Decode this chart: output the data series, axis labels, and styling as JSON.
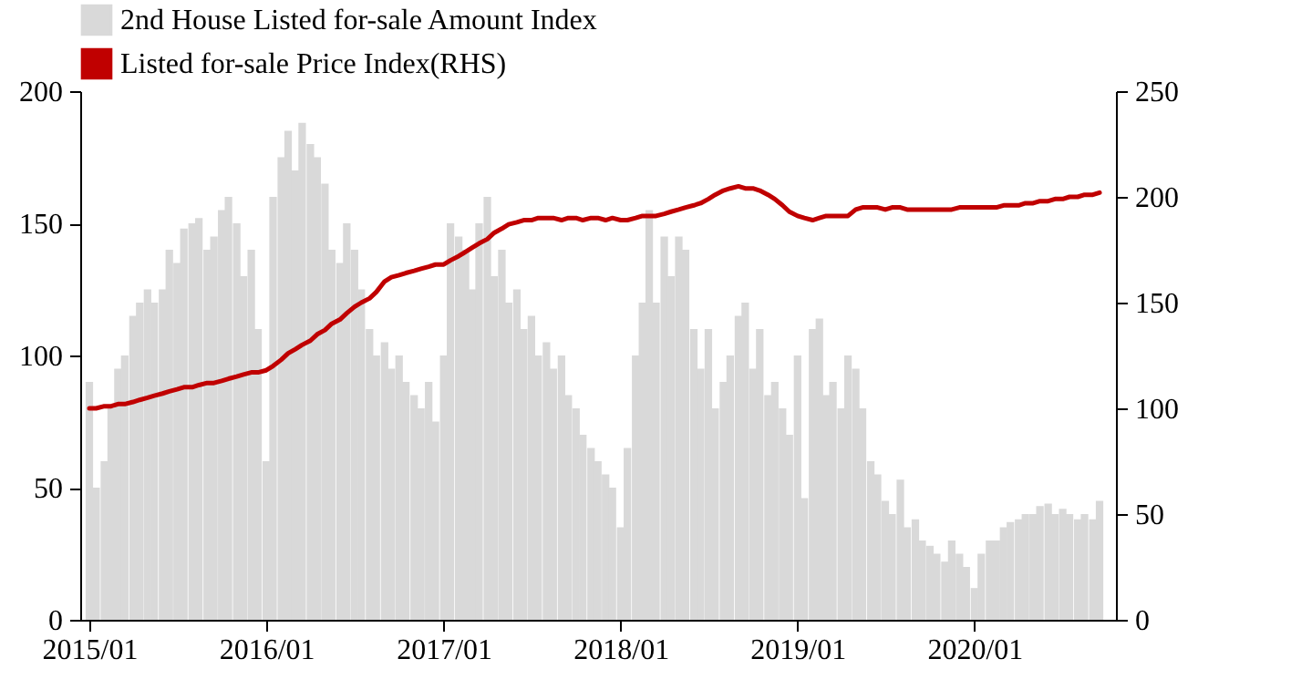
{
  "chart_data": {
    "type": "bar",
    "x": [
      "2015-01-01",
      "2015-01-15",
      "2015-02-01",
      "2015-02-15",
      "2015-03-01",
      "2015-03-15",
      "2015-04-01",
      "2015-04-15",
      "2015-05-01",
      "2015-05-15",
      "2015-06-01",
      "2015-06-15",
      "2015-07-01",
      "2015-07-15",
      "2015-08-01",
      "2015-08-15",
      "2015-09-01",
      "2015-09-15",
      "2015-10-01",
      "2015-10-15",
      "2015-11-01",
      "2015-11-15",
      "2015-12-01",
      "2015-12-15",
      "2016-01-01",
      "2016-01-15",
      "2016-02-01",
      "2016-02-15",
      "2016-03-01",
      "2016-03-15",
      "2016-04-01",
      "2016-04-15",
      "2016-05-01",
      "2016-05-15",
      "2016-06-01",
      "2016-06-15",
      "2016-07-01",
      "2016-07-15",
      "2016-08-01",
      "2016-08-15",
      "2016-09-01",
      "2016-09-15",
      "2016-10-01",
      "2016-10-15",
      "2016-11-01",
      "2016-11-15",
      "2016-12-01",
      "2016-12-15",
      "2017-01-01",
      "2017-01-15",
      "2017-02-01",
      "2017-02-15",
      "2017-03-01",
      "2017-03-15",
      "2017-04-01",
      "2017-04-15",
      "2017-05-01",
      "2017-05-15",
      "2017-06-01",
      "2017-06-15",
      "2017-07-01",
      "2017-07-15",
      "2017-08-01",
      "2017-08-15",
      "2017-09-01",
      "2017-09-15",
      "2017-10-01",
      "2017-10-15",
      "2017-11-01",
      "2017-11-15",
      "2017-12-01",
      "2017-12-15",
      "2018-01-01",
      "2018-01-15",
      "2018-02-01",
      "2018-02-15",
      "2018-03-01",
      "2018-03-15",
      "2018-04-01",
      "2018-04-15",
      "2018-05-01",
      "2018-05-15",
      "2018-06-01",
      "2018-06-15",
      "2018-07-01",
      "2018-07-15",
      "2018-08-01",
      "2018-08-15",
      "2018-09-01",
      "2018-09-15",
      "2018-10-01",
      "2018-10-15",
      "2018-11-01",
      "2018-11-15",
      "2018-12-01",
      "2018-12-15",
      "2019-01-01",
      "2019-01-15",
      "2019-02-01",
      "2019-02-15",
      "2019-03-01",
      "2019-03-15",
      "2019-04-01",
      "2019-04-15",
      "2019-05-01",
      "2019-05-15",
      "2019-06-01",
      "2019-06-15",
      "2019-07-01",
      "2019-07-15",
      "2019-08-01",
      "2019-08-15",
      "2019-09-01",
      "2019-09-15",
      "2019-10-01",
      "2019-10-15",
      "2019-11-01",
      "2019-11-15",
      "2019-12-01",
      "2019-12-15",
      "2020-01-01",
      "2020-01-15",
      "2020-02-01",
      "2020-02-15",
      "2020-03-01",
      "2020-03-15",
      "2020-04-01",
      "2020-04-15",
      "2020-05-01",
      "2020-05-15",
      "2020-06-01",
      "2020-06-15",
      "2020-07-01",
      "2020-07-15",
      "2020-08-01",
      "2020-08-15",
      "2020-09-01",
      "2020-09-15"
    ],
    "series": [
      {
        "name": "2nd House Listed for-sale Amount Index",
        "color": "#d9d9d9",
        "values": [
          90,
          50,
          60,
          80,
          95,
          100,
          115,
          120,
          125,
          120,
          125,
          140,
          135,
          148,
          150,
          152,
          140,
          145,
          155,
          160,
          150,
          130,
          140,
          110,
          60,
          160,
          175,
          185,
          170,
          188,
          180,
          175,
          165,
          140,
          135,
          150,
          140,
          125,
          110,
          100,
          105,
          95,
          100,
          90,
          85,
          80,
          90,
          75,
          100,
          150,
          145,
          140,
          125,
          150,
          160,
          130,
          140,
          120,
          125,
          110,
          115,
          100,
          105,
          95,
          100,
          85,
          80,
          70,
          65,
          60,
          55,
          50,
          35,
          65,
          100,
          120,
          155,
          120,
          145,
          130,
          145,
          140,
          110,
          95,
          110,
          80,
          90,
          100,
          115,
          120,
          95,
          110,
          85,
          90,
          80,
          70,
          100,
          46,
          110,
          114,
          85,
          90,
          80,
          100,
          95,
          80,
          60,
          55,
          45,
          40,
          53,
          35,
          38,
          30,
          28,
          25,
          22,
          30,
          25,
          20,
          12,
          25,
          30,
          30,
          35,
          37,
          38,
          40,
          40,
          43,
          44,
          40,
          42,
          40,
          38,
          40,
          38,
          45
        ]
      },
      {
        "name": "Listed for-sale Price Index(RHS)",
        "type": "line",
        "axis": "y2",
        "color": "#c00000",
        "values": [
          100,
          100,
          101,
          101,
          102,
          102,
          103,
          104,
          105,
          106,
          107,
          108,
          109,
          110,
          110,
          111,
          112,
          112,
          113,
          114,
          115,
          116,
          117,
          117,
          118,
          120,
          123,
          126,
          128,
          130,
          132,
          135,
          137,
          140,
          142,
          145,
          148,
          150,
          152,
          155,
          160,
          162,
          163,
          164,
          165,
          166,
          167,
          168,
          168,
          170,
          172,
          174,
          176,
          178,
          180,
          183,
          185,
          187,
          188,
          189,
          189,
          190,
          190,
          190,
          189,
          190,
          190,
          189,
          190,
          190,
          189,
          190,
          189,
          189,
          190,
          191,
          191,
          191,
          192,
          193,
          194,
          195,
          196,
          197,
          199,
          201,
          203,
          204,
          205,
          204,
          204,
          203,
          201,
          199,
          196,
          193,
          191,
          190,
          189,
          190,
          191,
          191,
          191,
          191,
          194,
          195,
          195,
          195,
          194,
          195,
          195,
          194,
          194,
          194,
          194,
          194,
          194,
          194,
          195,
          195,
          195,
          195,
          195,
          195,
          196,
          196,
          196,
          197,
          197,
          198,
          198,
          199,
          199,
          200,
          200,
          201,
          201,
          202
        ]
      }
    ],
    "xlim": [
      "2015-01-01",
      "2020-09-30"
    ],
    "xticks": [
      {
        "value": "2015-01-01",
        "label": "2015/01"
      },
      {
        "value": "2016-01-01",
        "label": "2016/01"
      },
      {
        "value": "2017-01-01",
        "label": "2017/01"
      },
      {
        "value": "2018-01-01",
        "label": "2018/01"
      },
      {
        "value": "2019-01-01",
        "label": "2019/01"
      },
      {
        "value": "2020-01-01",
        "label": "2020/01"
      }
    ],
    "ylim": [
      0,
      200
    ],
    "yticks": [
      0,
      50,
      100,
      150,
      200
    ],
    "y2lim": [
      0,
      250
    ],
    "y2ticks": [
      0,
      50,
      100,
      150,
      200,
      250
    ],
    "legend": "top",
    "grid": false
  }
}
